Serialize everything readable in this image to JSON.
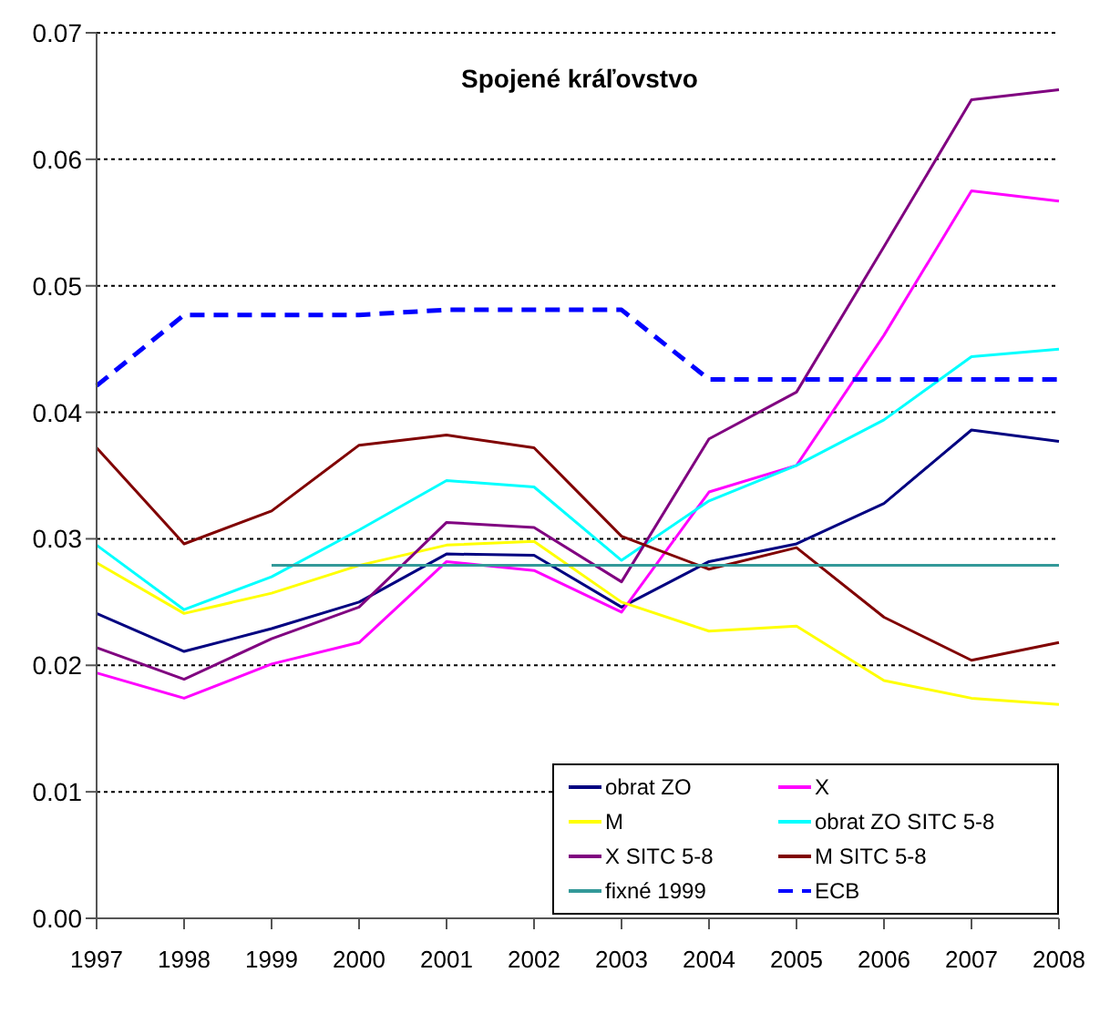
{
  "chart_data": {
    "type": "line",
    "title": "Spojené kráľovstvo",
    "categories": [
      "1997",
      "1998",
      "1999",
      "2000",
      "2001",
      "2002",
      "2003",
      "2004",
      "2005",
      "2006",
      "2007",
      "2008"
    ],
    "series": [
      {
        "name": "obrat ZO",
        "color": "#000080",
        "values": [
          0.0241,
          0.0211,
          0.0229,
          0.025,
          0.0288,
          0.0287,
          0.0246,
          0.0282,
          0.0296,
          0.0328,
          0.0386,
          0.0377
        ]
      },
      {
        "name": "X",
        "color": "#ff00ff",
        "values": [
          0.0194,
          0.0174,
          0.0201,
          0.0218,
          0.0282,
          0.0275,
          0.0242,
          0.0337,
          0.0358,
          0.0461,
          0.0575,
          0.0567
        ]
      },
      {
        "name": "M",
        "color": "#ffff00",
        "values": [
          0.0281,
          0.0241,
          0.0257,
          0.0279,
          0.0295,
          0.0298,
          0.025,
          0.0227,
          0.0231,
          0.0188,
          0.0174,
          0.0169
        ]
      },
      {
        "name": "obrat ZO SITC 5-8",
        "color": "#00ffff",
        "values": [
          0.0295,
          0.0244,
          0.027,
          0.0307,
          0.0346,
          0.0341,
          0.0283,
          0.033,
          0.0358,
          0.0394,
          0.0444,
          0.045
        ]
      },
      {
        "name": "X SITC 5-8",
        "color": "#800080",
        "values": [
          0.0214,
          0.0189,
          0.0221,
          0.0246,
          0.0313,
          0.0309,
          0.0266,
          0.0379,
          0.0416,
          0.0531,
          0.0647,
          0.0655
        ]
      },
      {
        "name": "M SITC 5-8",
        "color": "#800000",
        "values": [
          0.0372,
          0.0296,
          0.0322,
          0.0374,
          0.0382,
          0.0372,
          0.0302,
          0.0276,
          0.0293,
          0.0238,
          0.0204,
          0.0218
        ]
      },
      {
        "name": "fixné 1999",
        "color": "#339999",
        "values": [
          null,
          null,
          0.0279,
          0.0279,
          0.0279,
          0.0279,
          0.0279,
          0.0279,
          0.0279,
          0.0279,
          0.0279,
          0.0279
        ]
      },
      {
        "name": "ECB",
        "color": "#0000ff",
        "line_style": "dashed",
        "values": [
          0.0421,
          0.0477,
          0.0477,
          0.0477,
          0.0481,
          0.0481,
          0.0481,
          0.0426,
          0.0426,
          0.0426,
          0.0426,
          0.0426
        ]
      }
    ],
    "ylim": [
      0,
      0.07
    ],
    "yticks": [
      {
        "value": 0,
        "label": "0.00"
      },
      0.01,
      0.02,
      0.03,
      0.04,
      0.05,
      0.06,
      0.07
    ],
    "grid": "y",
    "legend": "bottom right",
    "marker": "none",
    "line_style": "solid"
  }
}
